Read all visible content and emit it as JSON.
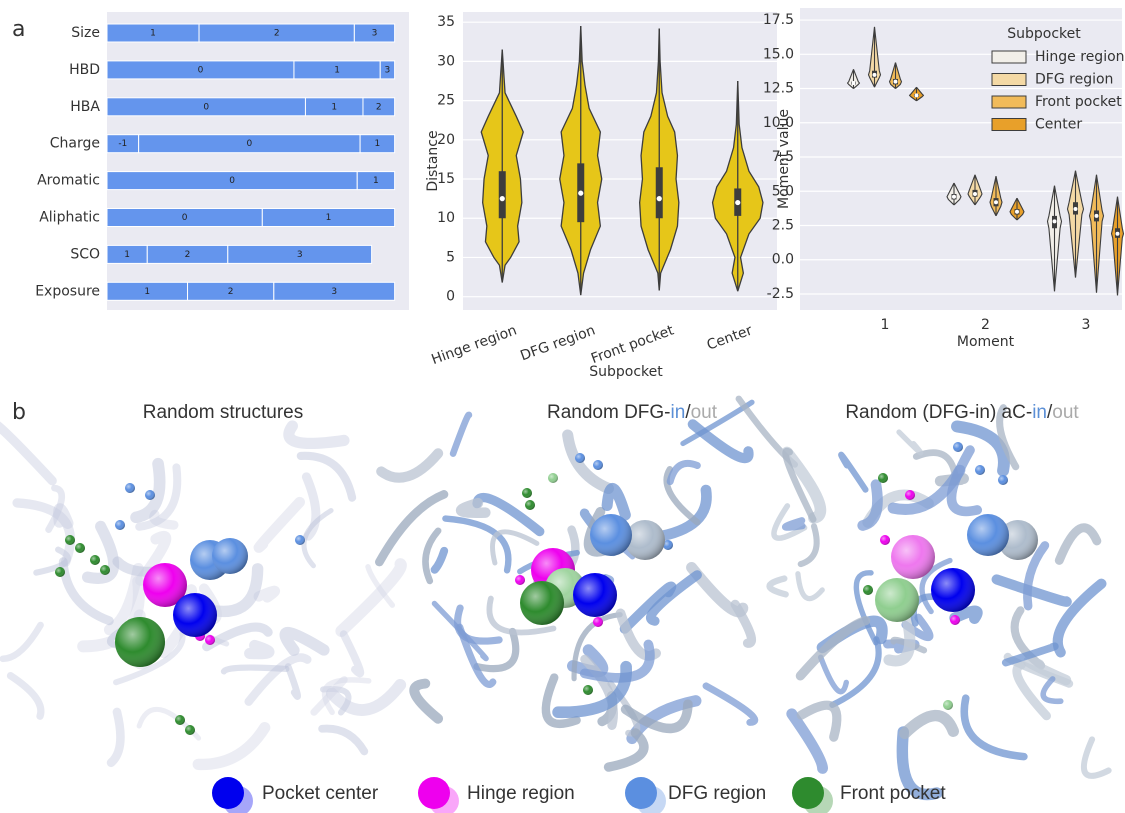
{
  "panel_labels": [
    "a",
    "b"
  ],
  "chart_data": [
    {
      "type": "stacked-bar",
      "orientation": "horizontal",
      "color": "#6495ed",
      "xlim": [
        0,
        1.05
      ],
      "categories": [
        "Size",
        "HBD",
        "HBA",
        "Charge",
        "Aromatic",
        "Aliphatic",
        "SCO",
        "Exposure"
      ],
      "segments": [
        [
          {
            "label": "1",
            "value": 0.32
          },
          {
            "label": "2",
            "value": 0.54
          },
          {
            "label": "3",
            "value": 0.14
          }
        ],
        [
          {
            "label": "0",
            "value": 0.65
          },
          {
            "label": "1",
            "value": 0.3
          },
          {
            "label": "3",
            "value": 0.05
          }
        ],
        [
          {
            "label": "0",
            "value": 0.69
          },
          {
            "label": "1",
            "value": 0.2
          },
          {
            "label": "2",
            "value": 0.11
          }
        ],
        [
          {
            "label": "-1",
            "value": 0.11
          },
          {
            "label": "0",
            "value": 0.77
          },
          {
            "label": "1",
            "value": 0.12
          }
        ],
        [
          {
            "label": "0",
            "value": 0.87
          },
          {
            "label": "1",
            "value": 0.13
          }
        ],
        [
          {
            "label": "0",
            "value": 0.54
          },
          {
            "label": "1",
            "value": 0.46
          }
        ],
        [
          {
            "label": "1",
            "value": 0.14
          },
          {
            "label": "2",
            "value": 0.28
          },
          {
            "label": "3",
            "value": 0.5
          }
        ],
        [
          {
            "label": "1",
            "value": 0.28
          },
          {
            "label": "2",
            "value": 0.3
          },
          {
            "label": "3",
            "value": 0.42
          }
        ]
      ]
    },
    {
      "type": "violin",
      "x_label": "Subpocket",
      "y_label": "Distance",
      "color": "#e6c619",
      "grid": true,
      "categories": [
        "Hinge region",
        "DFG region",
        "Front pocket",
        "Center"
      ],
      "ylim": [
        -1.7,
        36.3
      ],
      "yticks": [
        0,
        5,
        10,
        15,
        20,
        25,
        30,
        35
      ],
      "violins": [
        {
          "q1": 10,
          "median": 12.5,
          "q3": 16,
          "density": {
            "y": [
              1.8,
              4,
              5,
              7,
              9,
              12,
              15,
              18,
              21,
              23,
              26,
              31.5
            ],
            "width": [
              0,
              0.1,
              0.3,
              0.6,
              0.55,
              0.7,
              0.65,
              0.5,
              0.75,
              0.5,
              0.1,
              0
            ]
          }
        },
        {
          "q1": 9.5,
          "median": 13.2,
          "q3": 17,
          "density": {
            "y": [
              0.2,
              3,
              6,
              9,
              12,
              15,
              18,
              21,
              24,
              27,
              30,
              34.5
            ],
            "width": [
              0,
              0.1,
              0.35,
              0.7,
              0.6,
              0.75,
              0.6,
              0.7,
              0.3,
              0.15,
              0.05,
              0
            ]
          }
        },
        {
          "q1": 10,
          "median": 12.5,
          "q3": 16.5,
          "density": {
            "y": [
              0.8,
              3,
              6,
              9,
              12,
              15,
              18,
              21,
              23,
              26,
              30,
              34.2
            ],
            "width": [
              0,
              0.05,
              0.4,
              0.65,
              0.7,
              0.6,
              0.65,
              0.55,
              0.3,
              0.1,
              0.03,
              0
            ]
          }
        },
        {
          "q1": 10.3,
          "median": 12,
          "q3": 13.8,
          "density": {
            "y": [
              0.7,
              3,
              5,
              8,
              10,
              12,
              14,
              16,
              19,
              22,
              27.5
            ],
            "width": [
              0,
              0.2,
              0.1,
              0.4,
              0.8,
              0.9,
              0.75,
              0.4,
              0.15,
              0.05,
              0
            ]
          }
        }
      ]
    },
    {
      "type": "grouped-violin",
      "x_label": "Moment",
      "y_label": "Moment value",
      "grid": true,
      "categories": [
        "1",
        "2",
        "3"
      ],
      "ylim": [
        -3.67,
        18.38
      ],
      "yticks": [
        -2.5,
        {
          "value": 0,
          "label": "0.0"
        },
        2.5,
        {
          "value": 5,
          "label": "5.0"
        },
        7.5,
        {
          "value": 10,
          "label": "10.0"
        },
        12.5,
        {
          "value": 15,
          "label": "15.0"
        },
        17.5
      ],
      "legend": {
        "title": "Subpocket",
        "position": "upper right"
      },
      "series": [
        {
          "name": "Hinge region",
          "color": "#f2efe9",
          "violins": [
            {
              "min": 12.5,
              "q1": 12.8,
              "median": 12.9,
              "q3": 13.0,
              "max": 13.9,
              "width": 0.6
            },
            {
              "min": 4.0,
              "q1": 4.4,
              "median": 4.6,
              "q3": 4.8,
              "max": 5.6,
              "width": 0.7
            },
            {
              "min": -2.3,
              "q1": 2.3,
              "median": 2.8,
              "q3": 3.2,
              "max": 5.4,
              "width": 0.7
            }
          ]
        },
        {
          "name": "DFG region",
          "color": "#f4d9a5",
          "violins": [
            {
              "min": 12.6,
              "q1": 13.3,
              "median": 13.5,
              "q3": 13.8,
              "max": 17.0,
              "width": 0.6
            },
            {
              "min": 4.0,
              "q1": 4.6,
              "median": 4.8,
              "q3": 5.1,
              "max": 6.2,
              "width": 0.7
            },
            {
              "min": -1.3,
              "q1": 3.3,
              "median": 3.7,
              "q3": 4.2,
              "max": 6.5,
              "width": 0.8
            }
          ]
        },
        {
          "name": "Front pocket",
          "color": "#f1bb5a",
          "violins": [
            {
              "min": 12.5,
              "q1": 12.8,
              "median": 13.0,
              "q3": 13.2,
              "max": 14.4,
              "width": 0.6
            },
            {
              "min": 3.2,
              "q1": 3.9,
              "median": 4.2,
              "q3": 4.5,
              "max": 6.1,
              "width": 0.6
            },
            {
              "min": -2.4,
              "q1": 2.8,
              "median": 3.2,
              "q3": 3.6,
              "max": 6.2,
              "width": 0.7
            }
          ]
        },
        {
          "name": "Center",
          "color": "#e8a02a",
          "violins": [
            {
              "min": 11.6,
              "q1": 11.9,
              "median": 12.0,
              "q3": 12.1,
              "max": 12.6,
              "width": 0.7
            },
            {
              "min": 2.9,
              "q1": 3.3,
              "median": 3.5,
              "q3": 3.7,
              "max": 4.5,
              "width": 0.7
            },
            {
              "min": -2.6,
              "q1": 1.6,
              "median": 1.9,
              "q3": 2.3,
              "max": 4.6,
              "width": 0.6
            }
          ]
        }
      ]
    }
  ],
  "panel_b": {
    "titles": [
      {
        "parts": [
          {
            "text": "Random structures",
            "color": "#333333"
          }
        ]
      },
      {
        "parts": [
          {
            "text": "Random DFG-",
            "color": "#333333"
          },
          {
            "text": "in",
            "color": "#5b8fd6"
          },
          {
            "text": "/",
            "color": "#333333"
          },
          {
            "text": "out",
            "color": "#aaaaaa"
          }
        ]
      },
      {
        "parts": [
          {
            "text": "Random (DFG-in) aC-",
            "color": "#333333"
          },
          {
            "text": "in",
            "color": "#5b8fd6"
          },
          {
            "text": "/",
            "color": "#333333"
          },
          {
            "text": "out",
            "color": "#aaaaaa"
          }
        ]
      }
    ],
    "legend": [
      {
        "label": "Pocket center",
        "color": "#0000ee"
      },
      {
        "label": "Hinge region",
        "color": "#ee00ee"
      },
      {
        "label": "DFG region",
        "color": "#5b8fe0"
      },
      {
        "label": "Front pocket",
        "color": "#2e8b2e"
      }
    ]
  }
}
